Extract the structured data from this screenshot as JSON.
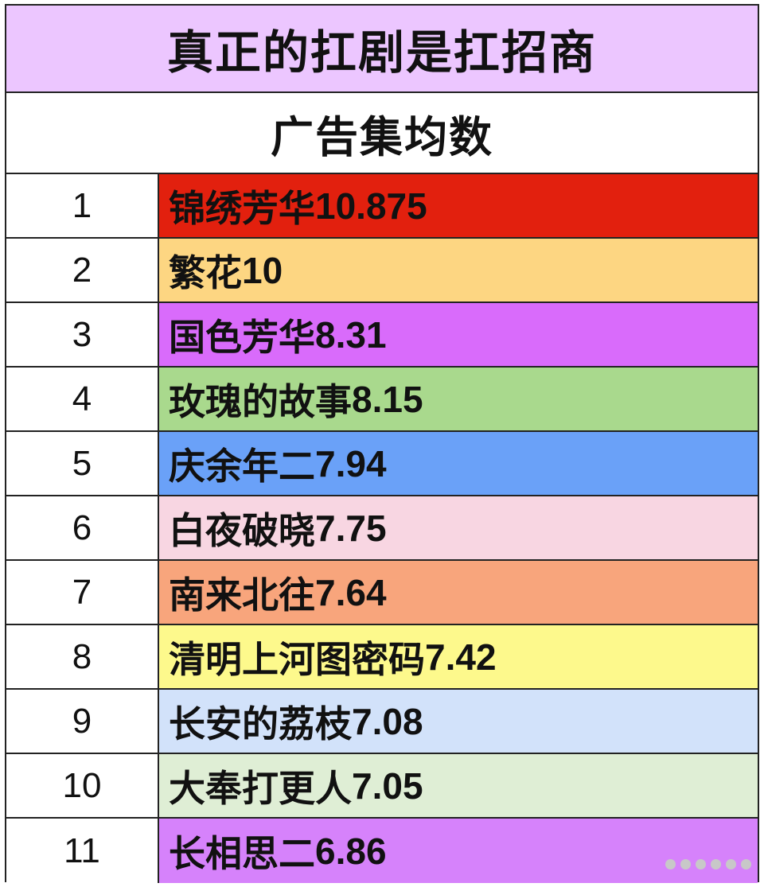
{
  "title": "真正的扛剧是扛招商",
  "subtitle": "广告集均数",
  "rows": [
    {
      "rank": "1",
      "name": "锦绣芳华",
      "value": "10.875",
      "color": "#e2200e"
    },
    {
      "rank": "2",
      "name": "繁花",
      "value": "10",
      "color": "#fdd682"
    },
    {
      "rank": "3",
      "name": "国色芳华",
      "value": "8.31",
      "color": "#d96bfb"
    },
    {
      "rank": "4",
      "name": "玫瑰的故事",
      "value": "8.15",
      "color": "#a9d98d"
    },
    {
      "rank": "5",
      "name": "庆余年二",
      "value": "7.94",
      "color": "#6aa1f8"
    },
    {
      "rank": "6",
      "name": "白夜破晓",
      "value": "7.75",
      "color": "#f8d6e2"
    },
    {
      "rank": "7",
      "name": "南来北往",
      "value": "7.64",
      "color": "#f8a57c"
    },
    {
      "rank": "8",
      "name": "清明上河图密码",
      "value": "7.42",
      "color": "#fdf98c"
    },
    {
      "rank": "9",
      "name": "长安的荔枝",
      "value": "7.08",
      "color": "#d2e2fa"
    },
    {
      "rank": "10",
      "name": "大奉打更人",
      "value": "7.05",
      "color": "#dfeed5"
    },
    {
      "rank": "11",
      "name": "长相思二",
      "value": "6.86",
      "color": "#d682fb"
    }
  ]
}
